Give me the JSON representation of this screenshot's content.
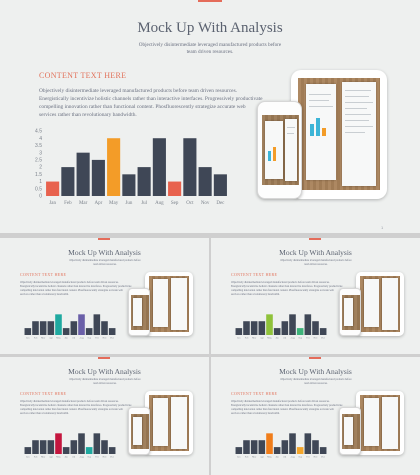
{
  "slide": {
    "title": "Mock Up With Analysis",
    "subtitle": "Objectively disintermediate leveraged manufactured products before team driven resources.",
    "section_heading": "CONTENT TEXT HERE",
    "body_text": "Objectively disintermediate leveraged manufactured products before team driven resources. Energistically incentivize holistic channels rather than interactive interfaces. Progressively productivate compelling innovation rather than functional content. Phosfluorescently strategize accurate web services rather than revolutionary bandwidth."
  },
  "chart_data": [
    {
      "type": "bar",
      "slide": "main",
      "categories": [
        "Jan",
        "Feb",
        "Mar",
        "Apr",
        "May",
        "Jun",
        "Jul",
        "Aug",
        "Sep",
        "Oct",
        "Nov",
        "Dec"
      ],
      "values": [
        1,
        2,
        3,
        2.5,
        4,
        1.5,
        2,
        4,
        1,
        4,
        2,
        1.5
      ],
      "ytick_labels": [
        "0",
        "0.5",
        "1",
        "1.5",
        "2",
        "2.5",
        "3",
        "3.5",
        "4",
        "4.5"
      ],
      "ylim": [
        0,
        4.5
      ],
      "colors": [
        "#e8624e",
        "#3f4756",
        "#3f4756",
        "#3f4756",
        "#f39c28",
        "#3f4756",
        "#3f4756",
        "#3f4756",
        "#e8624e",
        "#3f4756",
        "#3f4756",
        "#3f4756"
      ]
    },
    {
      "type": "bar",
      "slide": "variant-teal",
      "categories": [
        "Jan",
        "Feb",
        "Mar",
        "Apr",
        "May",
        "Jun",
        "Jul",
        "Aug",
        "Sep",
        "Oct",
        "Nov",
        "Dec"
      ],
      "values": [
        1,
        2,
        2,
        2,
        3,
        1,
        2,
        3,
        1,
        3,
        2,
        1
      ],
      "ylim": [
        0,
        4.5
      ],
      "colors": [
        "#3f4756",
        "#3f4756",
        "#3f4756",
        "#3f4756",
        "#1fa9a0",
        "#3f4756",
        "#3f4756",
        "#6a5fa8",
        "#3f4756",
        "#3f4756",
        "#3f4756",
        "#3f4756"
      ]
    },
    {
      "type": "bar",
      "slide": "variant-green",
      "categories": [
        "Jan",
        "Feb",
        "Mar",
        "Apr",
        "May",
        "Jun",
        "Jul",
        "Aug",
        "Sep",
        "Oct",
        "Nov",
        "Dec"
      ],
      "values": [
        1,
        2,
        2,
        2,
        3,
        1,
        2,
        3,
        1,
        3,
        2,
        1
      ],
      "ylim": [
        0,
        4.5
      ],
      "colors": [
        "#3f4756",
        "#3f4756",
        "#3f4756",
        "#3f4756",
        "#8fc23a",
        "#3f4756",
        "#3f4756",
        "#3f4756",
        "#3db37a",
        "#3f4756",
        "#3f4756",
        "#3f4756"
      ]
    },
    {
      "type": "bar",
      "slide": "variant-red",
      "categories": [
        "Jan",
        "Feb",
        "Mar",
        "Apr",
        "May",
        "Jun",
        "Jul",
        "Aug",
        "Sep",
        "Oct",
        "Nov",
        "Dec"
      ],
      "values": [
        1,
        2,
        2,
        2,
        3,
        1,
        2,
        3,
        1,
        3,
        2,
        1
      ],
      "ylim": [
        0,
        4.5
      ],
      "colors": [
        "#3f4756",
        "#3f4756",
        "#3f4756",
        "#3f4756",
        "#c4163e",
        "#3f4756",
        "#3f4756",
        "#3f4756",
        "#1fa9a0",
        "#3f4756",
        "#3f4756",
        "#3f4756"
      ]
    },
    {
      "type": "bar",
      "slide": "variant-orange",
      "categories": [
        "Jan",
        "Feb",
        "Mar",
        "Apr",
        "May",
        "Jun",
        "Jul",
        "Aug",
        "Sep",
        "Oct",
        "Nov",
        "Dec"
      ],
      "values": [
        1,
        2,
        2,
        2,
        3,
        1,
        2,
        3,
        1,
        3,
        2,
        1
      ],
      "ylim": [
        0,
        4.5
      ],
      "colors": [
        "#3f4756",
        "#3f4756",
        "#3f4756",
        "#3f4756",
        "#f07d1a",
        "#3f4756",
        "#3f4756",
        "#3f4756",
        "#f3a52a",
        "#3f4756",
        "#3f4756",
        "#3f4756"
      ]
    }
  ]
}
